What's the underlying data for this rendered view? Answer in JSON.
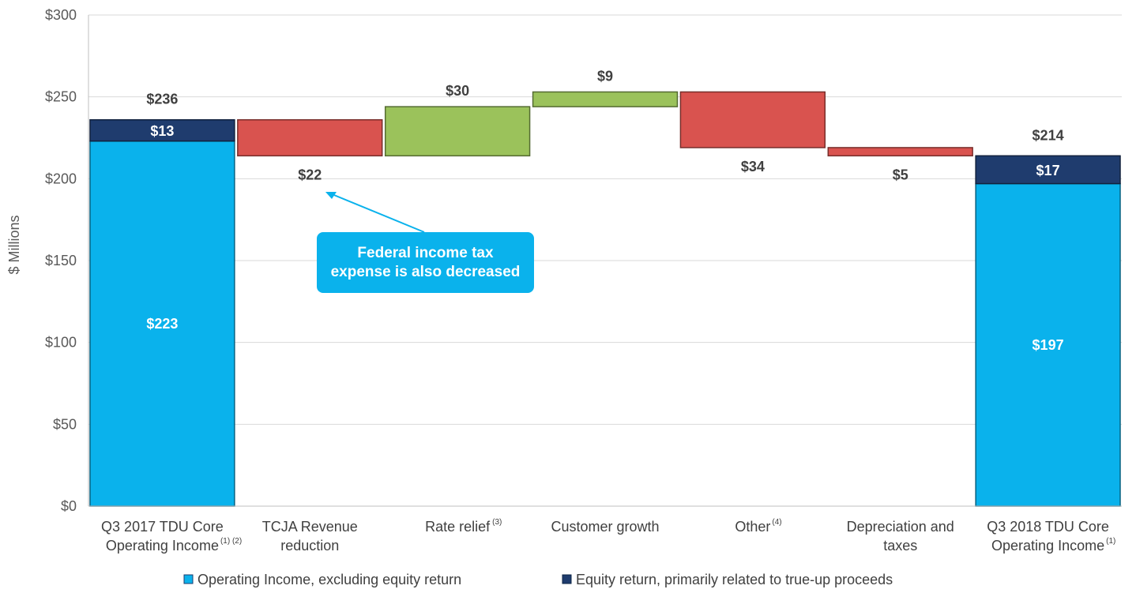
{
  "chart_data": {
    "type": "bar",
    "subtype": "waterfall",
    "ylabel": "$ Millions",
    "ylim": [
      0,
      300
    ],
    "yticks": [
      "$0",
      "$50",
      "$100",
      "$150",
      "$200",
      "$250",
      "$300"
    ],
    "grid": true,
    "categories": [
      {
        "line1": "Q3 2017 TDU Core",
        "line2": "Operating Income",
        "sup": "(1) (2)"
      },
      {
        "line1": "TCJA Revenue",
        "line2": "reduction",
        "sup": ""
      },
      {
        "line1": "Rate relief",
        "line2": "",
        "sup": "(3)"
      },
      {
        "line1": "Customer growth",
        "line2": "",
        "sup": ""
      },
      {
        "line1": "Other",
        "line2": "",
        "sup": "(4)"
      },
      {
        "line1": "Depreciation and",
        "line2": "taxes",
        "sup": ""
      },
      {
        "line1": "Q3 2018 TDU Core",
        "line2": "Operating Income",
        "sup": "(1)"
      }
    ],
    "series": [
      {
        "name": "Operating Income, excluding equity return",
        "color": "#0ab2ec"
      },
      {
        "name": "Equity return, primarily related to true-up proceeds",
        "color": "#1f3c6e"
      }
    ],
    "bars": [
      {
        "kind": "total",
        "base": 223,
        "equity": 13,
        "total": 236,
        "label_base": "$223",
        "label_equity": "$13",
        "label_total": "$236"
      },
      {
        "kind": "decrease",
        "from": 236,
        "to": 214,
        "value": -22,
        "label": "$22"
      },
      {
        "kind": "increase",
        "from": 214,
        "to": 244,
        "value": 30,
        "label": "$30"
      },
      {
        "kind": "increase",
        "from": 244,
        "to": 253,
        "value": 9,
        "label": "$9"
      },
      {
        "kind": "decrease",
        "from": 253,
        "to": 219,
        "value": -34,
        "label": "$34"
      },
      {
        "kind": "decrease",
        "from": 219,
        "to": 214,
        "value": -5,
        "label": "$5"
      },
      {
        "kind": "total",
        "base": 197,
        "equity": 17,
        "total": 214,
        "label_base": "$197",
        "label_equity": "$17",
        "label_total": "$214"
      }
    ],
    "colors": {
      "increase": "#9bc25b",
      "decrease": "#d9534f",
      "base": "#0ab2ec",
      "equity": "#1f3c6e"
    },
    "annotation": {
      "text_line1": "Federal income tax",
      "text_line2": "expense is also decreased",
      "color": "#0ab2ec"
    }
  }
}
